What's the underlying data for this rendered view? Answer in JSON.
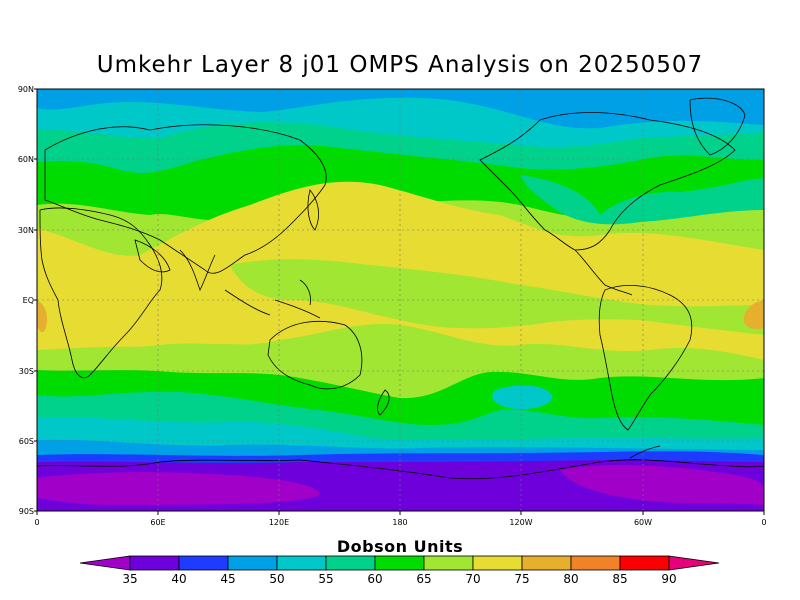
{
  "title": "Umkehr Layer 8 j01 OMPS Analysis on 20250507",
  "lat_labels": [
    "90N",
    "60N",
    "30N",
    "EQ",
    "30S",
    "60S",
    "90S"
  ],
  "lon_labels": [
    "0",
    "60E",
    "120E",
    "180",
    "120W",
    "60W",
    "0"
  ],
  "colorbar": {
    "title": "Dobson Units",
    "ticks": [
      "35",
      "40",
      "45",
      "50",
      "55",
      "60",
      "65",
      "70",
      "75",
      "80",
      "85",
      "90"
    ],
    "colors": [
      "#a000c8",
      "#6e00dc",
      "#1e3cff",
      "#00a0e6",
      "#00c8c8",
      "#00d28c",
      "#00dc00",
      "#a0e632",
      "#e6dc32",
      "#e6af2d",
      "#f08228",
      "#fa0000",
      "#e6007a"
    ]
  }
}
